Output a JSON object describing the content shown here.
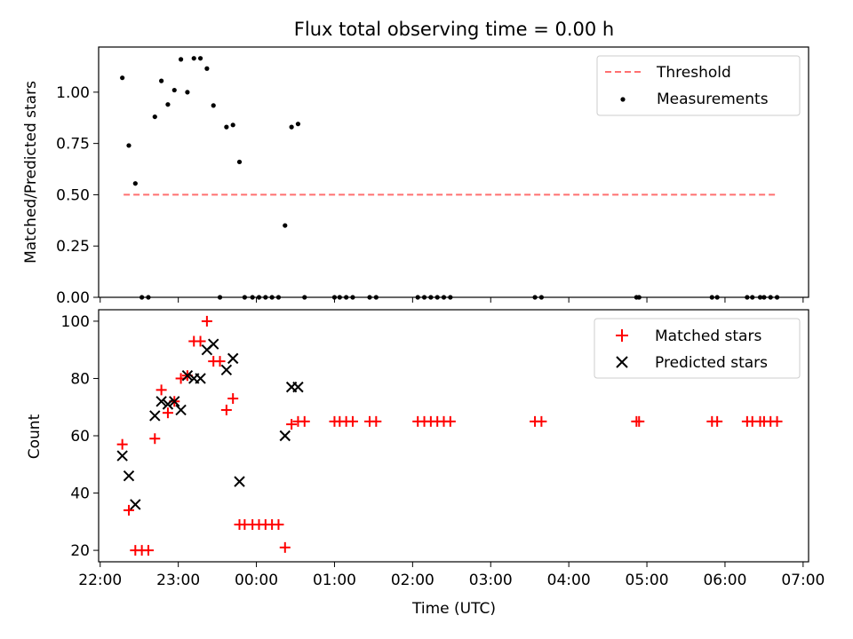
{
  "figure_title": "Flux total observing time = 0.00 h",
  "chart_data": [
    {
      "type": "scatter",
      "title": "Flux total observing time = 0.00 h",
      "xlabel": "",
      "ylabel": "Matched/Predicted stars",
      "ylim": [
        0,
        1.22
      ],
      "yticks": [
        0.0,
        0.25,
        0.5,
        0.75,
        1.0
      ],
      "ytick_labels": [
        "0.00",
        "0.25",
        "0.50",
        "0.75",
        "1.00"
      ],
      "xlim_hours": [
        21.98,
        31.07
      ],
      "legend": {
        "placement": "top-right",
        "entries": [
          "Threshold",
          "Measurements"
        ]
      },
      "threshold": {
        "name": "Threshold",
        "value": 0.5,
        "x_start": "22:18",
        "x_end": "06:40",
        "color": "#ff7070",
        "style": "dashed"
      },
      "series": [
        {
          "name": "Measurements",
          "color": "#000000",
          "points": [
            [
              "22:17",
              1.07
            ],
            [
              "22:22",
              0.74
            ],
            [
              "22:27",
              0.555
            ],
            [
              "22:32",
              0.0
            ],
            [
              "22:37",
              0.0
            ],
            [
              "22:42",
              0.88
            ],
            [
              "22:47",
              1.055
            ],
            [
              "22:52",
              0.94
            ],
            [
              "22:57",
              1.01
            ],
            [
              "23:02",
              1.16
            ],
            [
              "23:07",
              1.0
            ],
            [
              "23:12",
              1.165
            ],
            [
              "23:17",
              1.165
            ],
            [
              "23:22",
              1.115
            ],
            [
              "23:27",
              0.935
            ],
            [
              "23:32",
              0.0
            ],
            [
              "23:37",
              0.83
            ],
            [
              "23:42",
              0.84
            ],
            [
              "23:47",
              0.66
            ],
            [
              "23:51",
              0.0
            ],
            [
              "23:57",
              0.0
            ],
            [
              "00:02",
              0.0
            ],
            [
              "00:07",
              0.0
            ],
            [
              "00:12",
              0.0
            ],
            [
              "00:17",
              0.0
            ],
            [
              "00:22",
              0.35
            ],
            [
              "00:27",
              0.83
            ],
            [
              "00:32",
              0.845
            ],
            [
              "00:37",
              0.0
            ],
            [
              "01:00",
              0.0
            ],
            [
              "01:04",
              0.0
            ],
            [
              "01:09",
              0.0
            ],
            [
              "01:14",
              0.0
            ],
            [
              "01:27",
              0.0
            ],
            [
              "01:32",
              0.0
            ],
            [
              "02:04",
              0.0
            ],
            [
              "02:09",
              0.0
            ],
            [
              "02:14",
              0.0
            ],
            [
              "02:19",
              0.0
            ],
            [
              "02:24",
              0.0
            ],
            [
              "02:29",
              0.0
            ],
            [
              "03:34",
              0.0
            ],
            [
              "03:39",
              0.0
            ],
            [
              "04:52",
              0.0
            ],
            [
              "04:54",
              0.0
            ],
            [
              "05:50",
              0.0
            ],
            [
              "05:54",
              0.0
            ],
            [
              "06:17",
              0.0
            ],
            [
              "06:21",
              0.0
            ],
            [
              "06:27",
              0.0
            ],
            [
              "06:30",
              0.0
            ],
            [
              "06:35",
              0.0
            ],
            [
              "06:40",
              0.0
            ]
          ]
        }
      ]
    },
    {
      "type": "scatter",
      "title": "",
      "xlabel": "Time (UTC)",
      "ylabel": "Count",
      "ylim": [
        16,
        104
      ],
      "yticks": [
        20,
        40,
        60,
        80,
        100
      ],
      "ytick_labels": [
        "20",
        "40",
        "60",
        "80",
        "100"
      ],
      "xlim_hours": [
        21.98,
        31.07
      ],
      "xticks": [
        "22:00",
        "23:00",
        "00:00",
        "01:00",
        "02:00",
        "03:00",
        "04:00",
        "05:00",
        "06:00",
        "07:00"
      ],
      "legend": {
        "placement": "top-right",
        "entries": [
          "Matched stars",
          "Predicted stars"
        ]
      },
      "series": [
        {
          "name": "Matched stars",
          "marker": "+",
          "color": "#ff0000",
          "points": [
            [
              "22:17",
              57
            ],
            [
              "22:22",
              34
            ],
            [
              "22:27",
              20
            ],
            [
              "22:32",
              20
            ],
            [
              "22:37",
              20
            ],
            [
              "22:42",
              59
            ],
            [
              "22:47",
              76
            ],
            [
              "22:52",
              68
            ],
            [
              "22:57",
              72
            ],
            [
              "23:02",
              80
            ],
            [
              "23:07",
              81
            ],
            [
              "23:12",
              93
            ],
            [
              "23:17",
              93
            ],
            [
              "23:22",
              100
            ],
            [
              "23:27",
              86
            ],
            [
              "23:32",
              86
            ],
            [
              "23:37",
              69
            ],
            [
              "23:42",
              73
            ],
            [
              "23:47",
              29
            ],
            [
              "23:51",
              29
            ],
            [
              "23:57",
              29
            ],
            [
              "00:02",
              29
            ],
            [
              "00:07",
              29
            ],
            [
              "00:12",
              29
            ],
            [
              "00:17",
              29
            ],
            [
              "00:22",
              21
            ],
            [
              "00:27",
              64
            ],
            [
              "00:32",
              65
            ],
            [
              "00:37",
              65
            ],
            [
              "01:00",
              65
            ],
            [
              "01:04",
              65
            ],
            [
              "01:09",
              65
            ],
            [
              "01:14",
              65
            ],
            [
              "01:27",
              65
            ],
            [
              "01:32",
              65
            ],
            [
              "02:04",
              65
            ],
            [
              "02:09",
              65
            ],
            [
              "02:14",
              65
            ],
            [
              "02:19",
              65
            ],
            [
              "02:24",
              65
            ],
            [
              "02:29",
              65
            ],
            [
              "03:34",
              65
            ],
            [
              "03:39",
              65
            ],
            [
              "04:52",
              65
            ],
            [
              "04:54",
              65
            ],
            [
              "05:50",
              65
            ],
            [
              "05:54",
              65
            ],
            [
              "06:17",
              65
            ],
            [
              "06:21",
              65
            ],
            [
              "06:27",
              65
            ],
            [
              "06:30",
              65
            ],
            [
              "06:35",
              65
            ],
            [
              "06:40",
              65
            ]
          ]
        },
        {
          "name": "Predicted stars",
          "marker": "x",
          "color": "#000000",
          "points": [
            [
              "22:17",
              53
            ],
            [
              "22:22",
              46
            ],
            [
              "22:27",
              36
            ],
            [
              "22:42",
              67
            ],
            [
              "22:47",
              72
            ],
            [
              "22:52",
              71
            ],
            [
              "22:57",
              72
            ],
            [
              "23:02",
              69
            ],
            [
              "23:07",
              81
            ],
            [
              "23:12",
              80
            ],
            [
              "23:17",
              80
            ],
            [
              "23:22",
              90
            ],
            [
              "23:27",
              92
            ],
            [
              "23:37",
              83
            ],
            [
              "23:42",
              87
            ],
            [
              "23:47",
              44
            ],
            [
              "00:22",
              60
            ],
            [
              "00:27",
              77
            ],
            [
              "00:32",
              77
            ]
          ]
        }
      ]
    }
  ]
}
